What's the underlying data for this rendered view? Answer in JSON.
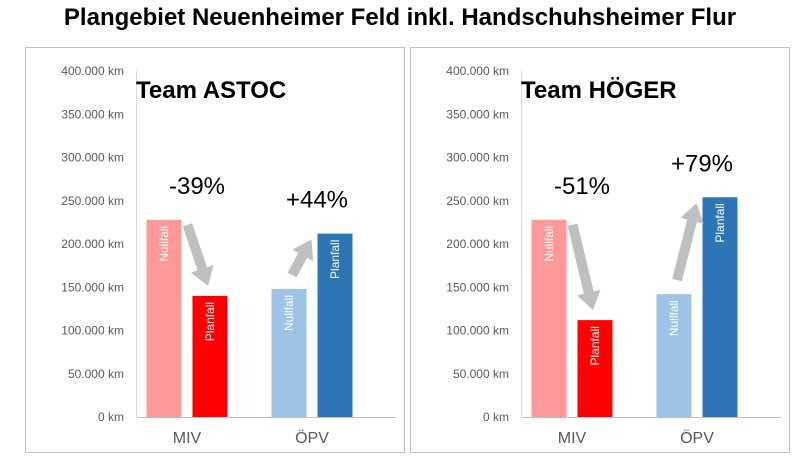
{
  "page": {
    "title": "Plangebiet Neuenheimer Feld inkl. Handschuhsheimer Flur"
  },
  "chart_data": [
    {
      "type": "bar",
      "title": "Team ASTOC",
      "categories": [
        "MIV",
        "ÖPV"
      ],
      "ylim": [
        0,
        400000
      ],
      "yticks": [
        0,
        50000,
        100000,
        150000,
        200000,
        250000,
        300000,
        350000,
        400000
      ],
      "ytick_labels": [
        "0 km",
        "50.000 km",
        "100.000 km",
        "150.000 km",
        "200.000 km",
        "250.000 km",
        "300.000 km",
        "350.000 km",
        "400.000 km"
      ],
      "grid": false,
      "bars": [
        {
          "category": "MIV",
          "label": "Nullfall",
          "value": 228000,
          "color": "#ff9999"
        },
        {
          "category": "MIV",
          "label": "Planfall",
          "value": 140000,
          "color": "#ff0000"
        },
        {
          "category": "ÖPV",
          "label": "Nullfall",
          "value": 148000,
          "color": "#9dc3e6"
        },
        {
          "category": "ÖPV",
          "label": "Planfall",
          "value": 212000,
          "color": "#2e75b6"
        }
      ],
      "annotations": [
        {
          "category": "MIV",
          "text": "-39%",
          "direction": "down"
        },
        {
          "category": "ÖPV",
          "text": "+44%",
          "direction": "up"
        }
      ]
    },
    {
      "type": "bar",
      "title": "Team HÖGER",
      "categories": [
        "MIV",
        "ÖPV"
      ],
      "ylim": [
        0,
        400000
      ],
      "yticks": [
        0,
        50000,
        100000,
        150000,
        200000,
        250000,
        300000,
        350000,
        400000
      ],
      "ytick_labels": [
        "0 km",
        "50.000 km",
        "100.000 km",
        "150.000 km",
        "200.000 km",
        "250.000 km",
        "300.000 km",
        "350.000 km",
        "400.000 km"
      ],
      "grid": false,
      "bars": [
        {
          "category": "MIV",
          "label": "Nullfall",
          "value": 228000,
          "color": "#ff9999"
        },
        {
          "category": "MIV",
          "label": "Planfall",
          "value": 112000,
          "color": "#ff0000"
        },
        {
          "category": "ÖPV",
          "label": "Nullfall",
          "value": 142000,
          "color": "#9dc3e6"
        },
        {
          "category": "ÖPV",
          "label": "Planfall",
          "value": 254000,
          "color": "#2e75b6"
        }
      ],
      "annotations": [
        {
          "category": "MIV",
          "text": "-51%",
          "direction": "down"
        },
        {
          "category": "ÖPV",
          "text": "+79%",
          "direction": "up"
        }
      ]
    }
  ]
}
